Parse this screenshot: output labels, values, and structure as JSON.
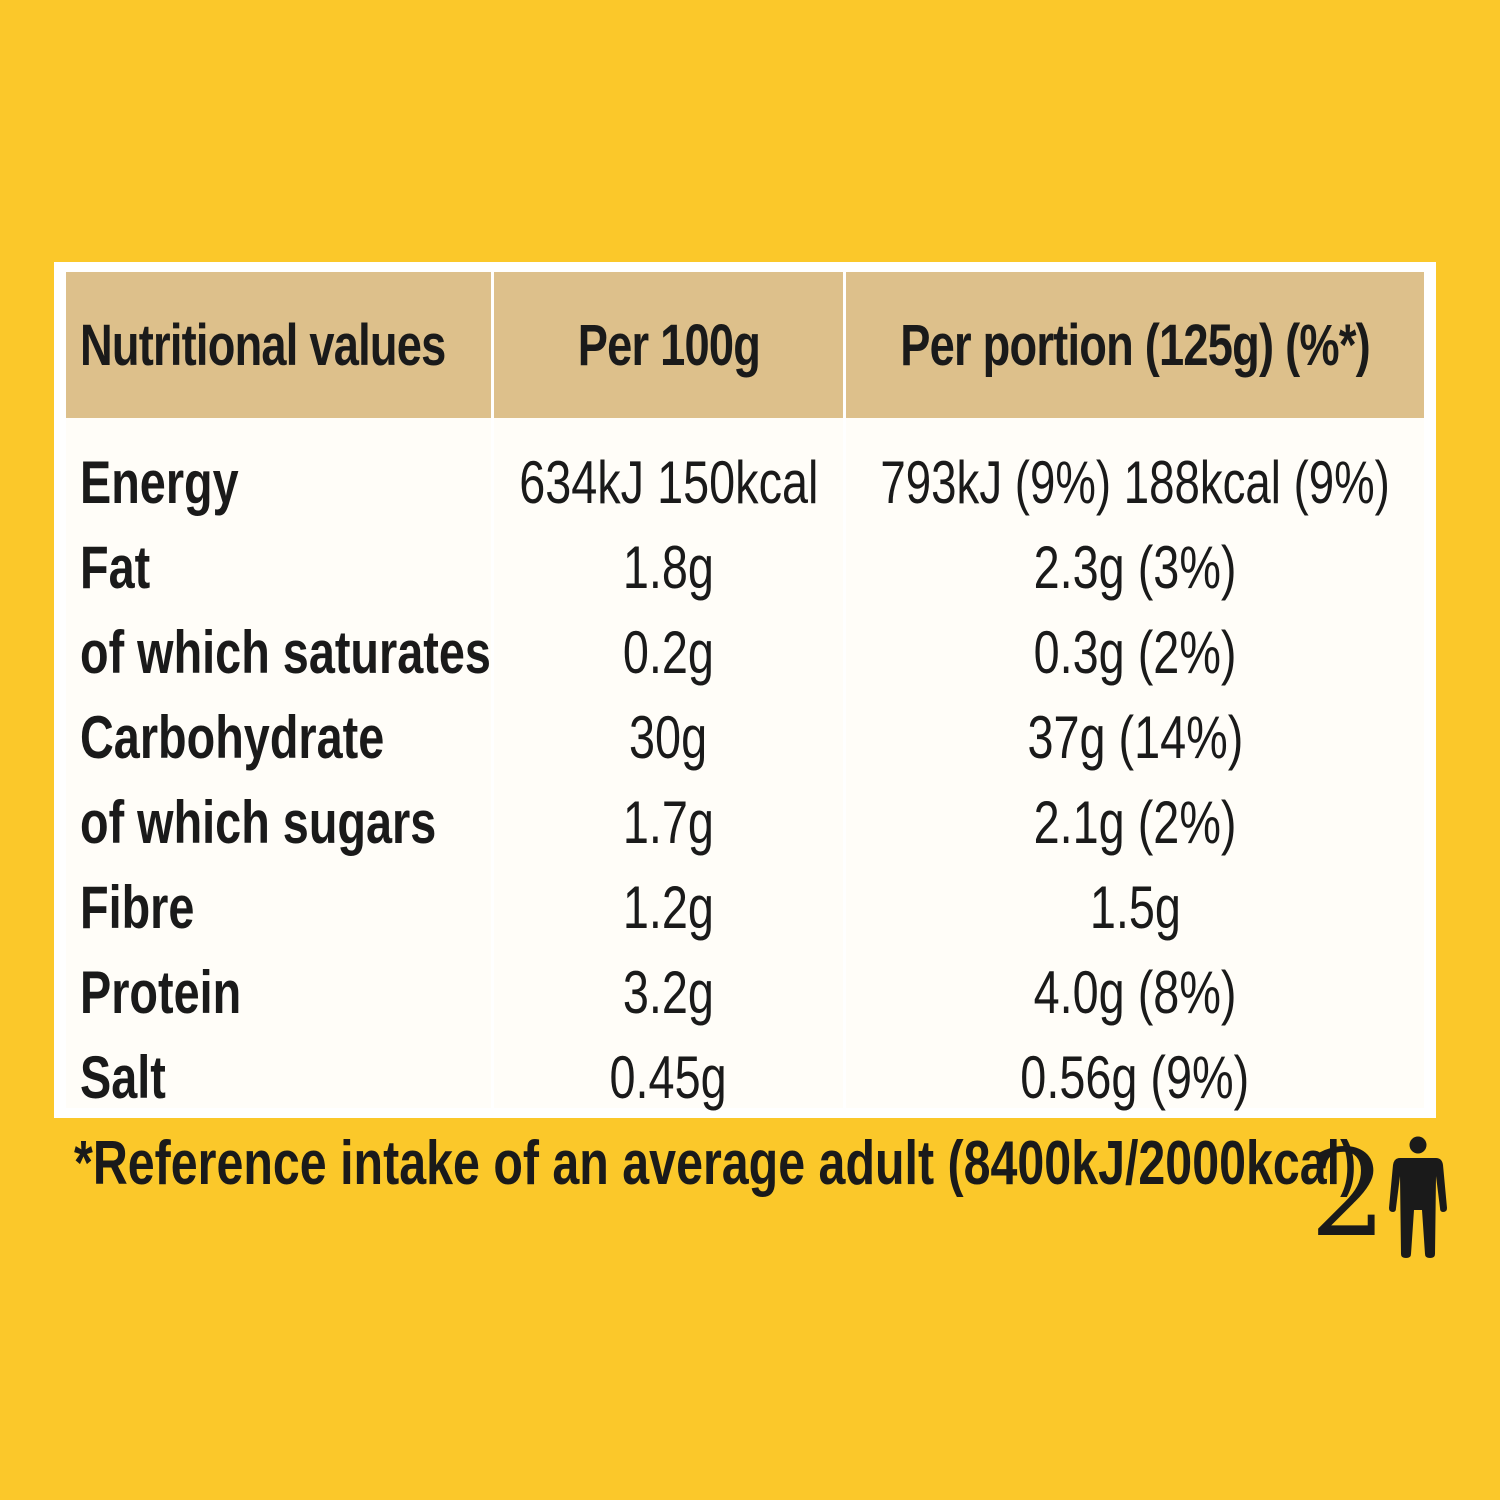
{
  "table": {
    "headers": [
      "Nutritional values",
      "Per 100g",
      "Per portion (125g) (%*)"
    ],
    "rows": [
      {
        "nutrient": "Energy",
        "per_100g": "634kJ 150kcal",
        "per_portion": "793kJ (9%) 188kcal (9%)"
      },
      {
        "nutrient": "Fat",
        "per_100g": "1.8g",
        "per_portion": "2.3g (3%)"
      },
      {
        "nutrient": "of which saturates",
        "per_100g": "0.2g",
        "per_portion": "0.3g (2%)"
      },
      {
        "nutrient": "Carbohydrate",
        "per_100g": "30g",
        "per_portion": "37g (14%)"
      },
      {
        "nutrient": "of which sugars",
        "per_100g": "1.7g",
        "per_portion": "2.1g (2%)"
      },
      {
        "nutrient": "Fibre",
        "per_100g": "1.2g",
        "per_portion": "1.5g"
      },
      {
        "nutrient": "Protein",
        "per_100g": "3.2g",
        "per_portion": "4.0g (8%)"
      },
      {
        "nutrient": "Salt",
        "per_100g": "0.45g",
        "per_portion": "0.56g (9%)"
      }
    ]
  },
  "footnote": "*Reference intake of an average adult (8400kJ/2000kcal)",
  "portions_badge": {
    "count": "2",
    "icon": "person-icon"
  },
  "colors": {
    "background": "#FBC82A",
    "header": "#DDC08B",
    "panel": "#FFFFFF"
  }
}
